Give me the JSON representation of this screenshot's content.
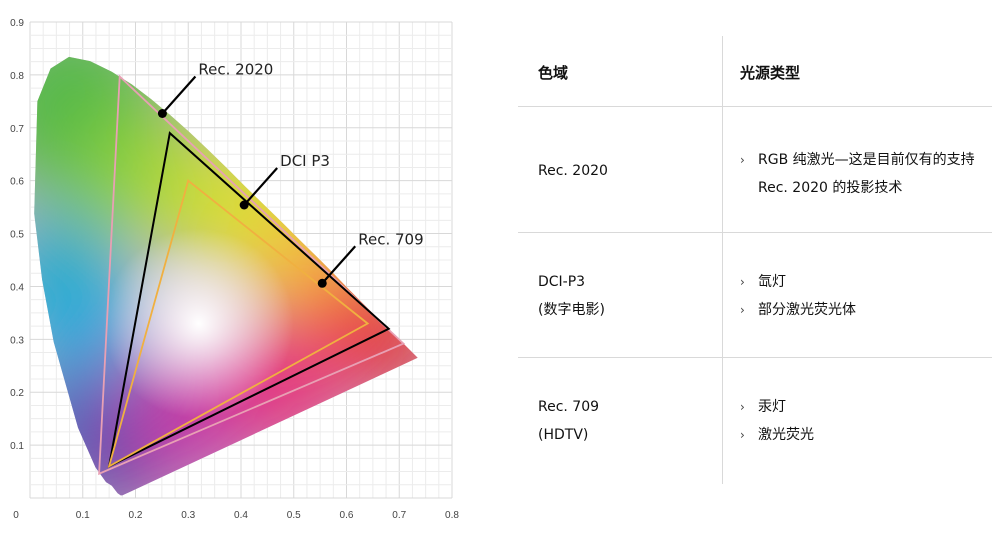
{
  "chart_data": {
    "type": "scatter",
    "subtype": "cie-1931-chromaticity-diagram",
    "xlim": [
      0,
      0.8
    ],
    "ylim": [
      0,
      0.9
    ],
    "x_ticks": [
      "0",
      "0.1",
      "0.2",
      "0.3",
      "0.4",
      "0.5",
      "0.6",
      "0.7",
      "0.8"
    ],
    "y_ticks": [
      "0.1",
      "0.2",
      "0.3",
      "0.4",
      "0.5",
      "0.6",
      "0.7",
      "0.8",
      "0.9"
    ],
    "grid": true,
    "spectral_locus": [
      [
        0.175,
        0.005
      ],
      [
        0.172,
        0.005
      ],
      [
        0.166,
        0.009
      ],
      [
        0.155,
        0.023
      ],
      [
        0.144,
        0.03
      ],
      [
        0.124,
        0.058
      ],
      [
        0.091,
        0.133
      ],
      [
        0.045,
        0.295
      ],
      [
        0.023,
        0.413
      ],
      [
        0.008,
        0.538
      ],
      [
        0.014,
        0.75
      ],
      [
        0.039,
        0.812
      ],
      [
        0.074,
        0.834
      ],
      [
        0.114,
        0.826
      ],
      [
        0.155,
        0.806
      ],
      [
        0.193,
        0.782
      ],
      [
        0.23,
        0.754
      ],
      [
        0.266,
        0.724
      ],
      [
        0.302,
        0.692
      ],
      [
        0.337,
        0.659
      ],
      [
        0.373,
        0.624
      ],
      [
        0.408,
        0.589
      ],
      [
        0.444,
        0.554
      ],
      [
        0.479,
        0.52
      ],
      [
        0.512,
        0.487
      ],
      [
        0.545,
        0.455
      ],
      [
        0.576,
        0.424
      ],
      [
        0.604,
        0.395
      ],
      [
        0.627,
        0.372
      ],
      [
        0.648,
        0.351
      ],
      [
        0.666,
        0.334
      ],
      [
        0.68,
        0.32
      ],
      [
        0.691,
        0.309
      ],
      [
        0.735,
        0.265
      ]
    ],
    "series": [
      {
        "name": "Rec. 2020",
        "color": "#e8a0b4",
        "points": [
          [
            0.708,
            0.292
          ],
          [
            0.17,
            0.797
          ],
          [
            0.131,
            0.046
          ]
        ]
      },
      {
        "name": "DCI P3",
        "color": "#000000",
        "points": [
          [
            0.68,
            0.32
          ],
          [
            0.265,
            0.69
          ],
          [
            0.15,
            0.06
          ]
        ]
      },
      {
        "name": "Rec. 709",
        "color": "#f0b040",
        "points": [
          [
            0.64,
            0.33
          ],
          [
            0.3,
            0.6
          ],
          [
            0.15,
            0.06
          ]
        ]
      }
    ],
    "annotations": [
      {
        "label": "Rec. 2020",
        "point": [
          0.251,
          0.727
        ]
      },
      {
        "label": "DCI P3",
        "point": [
          0.406,
          0.554
        ]
      },
      {
        "label": "Rec. 709",
        "point": [
          0.554,
          0.406
        ]
      }
    ]
  },
  "table": {
    "headers": [
      "色域",
      "光源类型"
    ],
    "rows": [
      {
        "name_lines": [
          "Rec. 2020"
        ],
        "sources": [
          "RGB 纯激光—这是目前仅有的支持 Rec. 2020 的投影技术"
        ]
      },
      {
        "name_lines": [
          "DCI-P3",
          "(数字电影)"
        ],
        "sources": [
          "氙灯",
          "部分激光荧光体"
        ]
      },
      {
        "name_lines": [
          "Rec. 709",
          "(HDTV)"
        ],
        "sources": [
          "汞灯",
          "激光荧光"
        ]
      }
    ],
    "bullet_glyph": "›"
  }
}
